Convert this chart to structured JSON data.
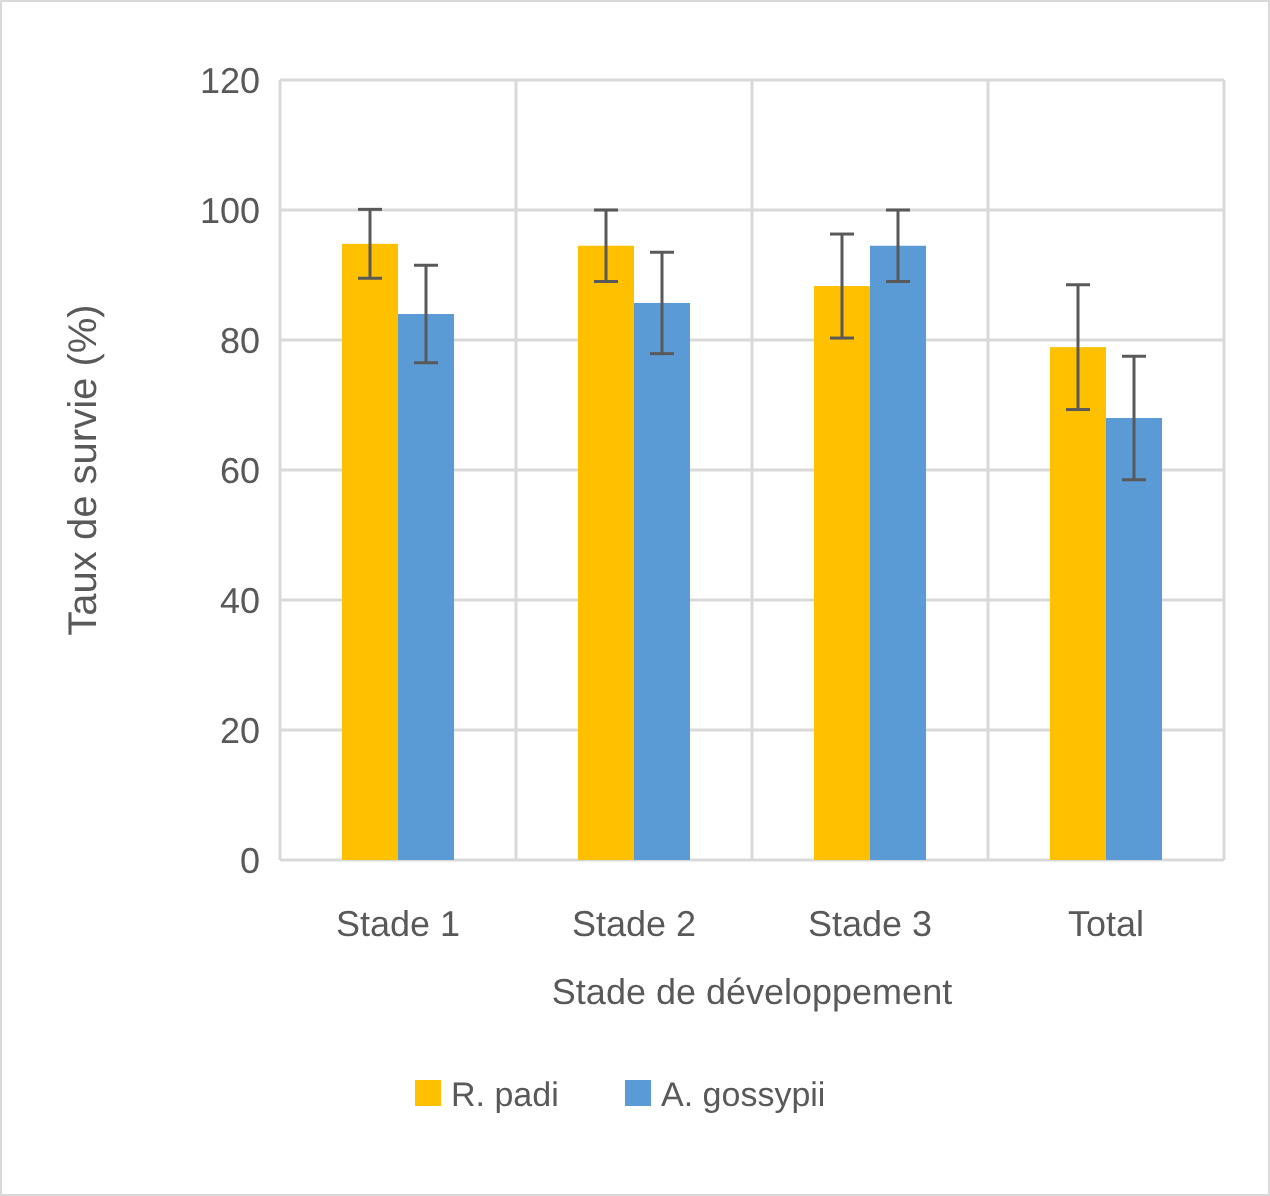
{
  "chart_data": {
    "type": "bar",
    "xlabel": "Stade de développement",
    "ylabel": "Taux de survie (%)",
    "categories": [
      "Stade 1",
      "Stade 2",
      "Stade 3",
      "Total"
    ],
    "series": [
      {
        "name": "R. padi",
        "color": "#ffc000",
        "values": [
          94.8,
          94.5,
          88.3,
          78.9
        ],
        "errors": [
          5.3,
          5.5,
          8,
          9.6
        ]
      },
      {
        "name": "A. gossypii",
        "color": "#5b9bd5",
        "values": [
          84,
          85.7,
          94.5,
          68
        ],
        "errors": [
          7.5,
          7.8,
          5.5,
          9.5
        ]
      }
    ],
    "ylim": [
      0,
      120
    ],
    "yticks": [
      0,
      20,
      40,
      60,
      80,
      100,
      120
    ],
    "grid": true,
    "legend": "bottom"
  }
}
